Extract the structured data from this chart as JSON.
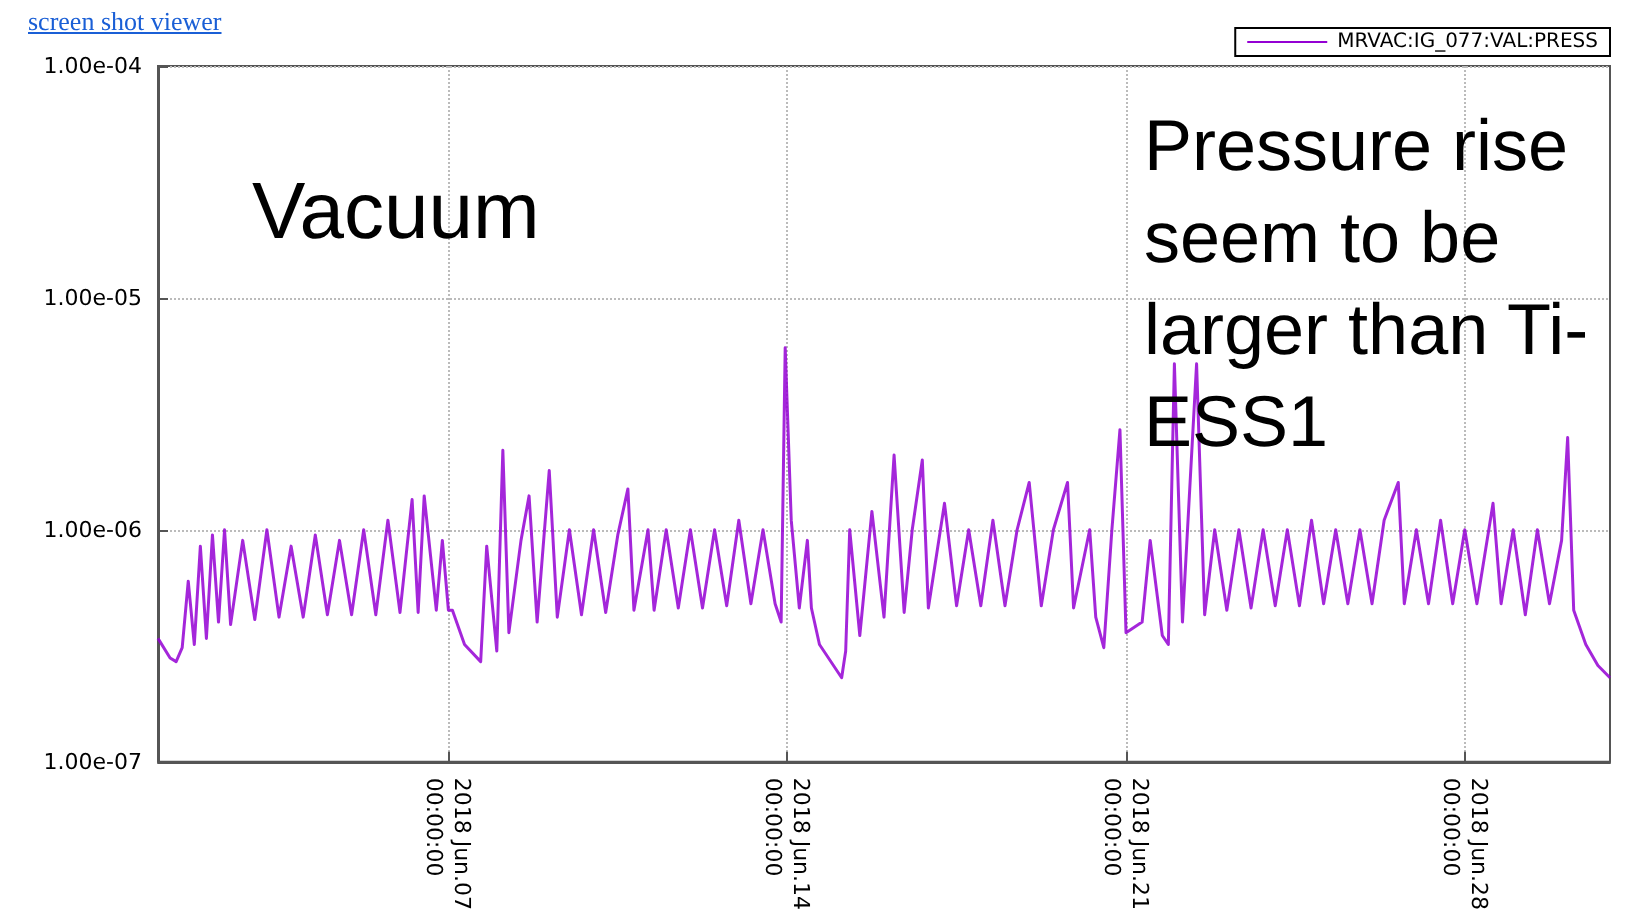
{
  "chart_data": {
    "type": "line",
    "annotations": [
      "screen shot viewer",
      "Vacuum",
      "Pressure rise seem to be larger than Ti-ESS1"
    ],
    "x": [
      "2018-06-01T00:00",
      "2018-06-01T06:00",
      "2018-06-01T09:00",
      "2018-06-01T12:00",
      "2018-06-01T15:00",
      "2018-06-01T18:00",
      "2018-06-01T21:00",
      "2018-06-02T00:00",
      "2018-06-02T03:00",
      "2018-06-02T06:00",
      "2018-06-02T09:00",
      "2018-06-02T12:00",
      "2018-06-02T18:00",
      "2018-06-03T00:00",
      "2018-06-03T06:00",
      "2018-06-03T12:00",
      "2018-06-03T18:00",
      "2018-06-04T00:00",
      "2018-06-04T06:00",
      "2018-06-04T12:00",
      "2018-06-04T18:00",
      "2018-06-05T00:00",
      "2018-06-05T06:00",
      "2018-06-05T12:00",
      "2018-06-05T18:00",
      "2018-06-06T00:00",
      "2018-06-06T06:00",
      "2018-06-06T09:00",
      "2018-06-06T12:00",
      "2018-06-06T18:00",
      "2018-06-06T21:00",
      "2018-06-07T00:00",
      "2018-06-07T02:00",
      "2018-06-07T08:00",
      "2018-06-07T16:00",
      "2018-06-07T19:00",
      "2018-06-08T00:00",
      "2018-06-08T03:00",
      "2018-06-08T06:00",
      "2018-06-08T12:00",
      "2018-06-08T16:00",
      "2018-06-08T20:00",
      "2018-06-09T02:00",
      "2018-06-09T06:00",
      "2018-06-09T12:00",
      "2018-06-09T18:00",
      "2018-06-10T00:00",
      "2018-06-10T06:00",
      "2018-06-10T12:00",
      "2018-06-10T17:00",
      "2018-06-10T20:00",
      "2018-06-11T03:00",
      "2018-06-11T06:00",
      "2018-06-11T12:00",
      "2018-06-11T18:00",
      "2018-06-12T00:00",
      "2018-06-12T06:00",
      "2018-06-12T12:00",
      "2018-06-12T18:00",
      "2018-06-13T00:00",
      "2018-06-13T06:00",
      "2018-06-13T12:00",
      "2018-06-13T18:00",
      "2018-06-13T21:00",
      "2018-06-13T23:00",
      "2018-06-14T02:00",
      "2018-06-14T06:00",
      "2018-06-14T10:00",
      "2018-06-14T12:00",
      "2018-06-14T16:00",
      "2018-06-15T03:00",
      "2018-06-15T05:00",
      "2018-06-15T07:00",
      "2018-06-15T12:00",
      "2018-06-15T18:00",
      "2018-06-16T00:00",
      "2018-06-16T05:00",
      "2018-06-16T10:00",
      "2018-06-16T14:00",
      "2018-06-16T19:00",
      "2018-06-16T22:00",
      "2018-06-17T06:00",
      "2018-06-17T12:00",
      "2018-06-17T18:00",
      "2018-06-18T00:00",
      "2018-06-18T06:00",
      "2018-06-18T12:00",
      "2018-06-18T18:00",
      "2018-06-19T00:00",
      "2018-06-19T06:00",
      "2018-06-19T12:00",
      "2018-06-19T19:00",
      "2018-06-19T22:00",
      "2018-06-20T06:00",
      "2018-06-20T09:00",
      "2018-06-20T13:00",
      "2018-06-20T17:00",
      "2018-06-20T21:00",
      "2018-06-21T00:00",
      "2018-06-21T08:00",
      "2018-06-21T12:00",
      "2018-06-21T18:00",
      "2018-06-21T21:00",
      "2018-06-22T00:00",
      "2018-06-22T04:00",
      "2018-06-22T11:00",
      "2018-06-22T15:00",
      "2018-06-22T20:00",
      "2018-06-23T02:00",
      "2018-06-23T08:00",
      "2018-06-23T14:00",
      "2018-06-23T20:00",
      "2018-06-24T02:00",
      "2018-06-24T08:00",
      "2018-06-24T14:00",
      "2018-06-24T20:00",
      "2018-06-25T02:00",
      "2018-06-25T08:00",
      "2018-06-25T14:00",
      "2018-06-25T20:00",
      "2018-06-26T02:00",
      "2018-06-26T08:00",
      "2018-06-26T15:00",
      "2018-06-26T18:00",
      "2018-06-27T00:00",
      "2018-06-27T06:00",
      "2018-06-27T12:00",
      "2018-06-27T18:00",
      "2018-06-28T00:00",
      "2018-06-28T06:00",
      "2018-06-28T14:00",
      "2018-06-28T18:00",
      "2018-06-29T00:00",
      "2018-06-29T06:00",
      "2018-06-29T12:00",
      "2018-06-29T18:00",
      "2018-06-30T00:00",
      "2018-06-30T03:00",
      "2018-06-30T06:00",
      "2018-06-30T12:00",
      "2018-06-30T18:00",
      "2018-07-01T00:00"
    ],
    "series": [
      {
        "name": "MRVAC:IG_077:VAL:PRESS",
        "color": "#9400d3",
        "values": [
          3.4e-07,
          2.8e-07,
          2.7e-07,
          3.1e-07,
          6e-07,
          3.2e-07,
          8.5e-07,
          3.4e-07,
          9.5e-07,
          4e-07,
          1e-06,
          3.9e-07,
          9e-07,
          4.1e-07,
          1e-06,
          4.2e-07,
          8.5e-07,
          4.2e-07,
          9.5e-07,
          4.3e-07,
          9e-07,
          4.3e-07,
          1e-06,
          4.3e-07,
          1.1e-06,
          4.4e-07,
          1.35e-06,
          4.4e-07,
          1.4e-06,
          4.5e-07,
          9e-07,
          4.5e-07,
          4.5e-07,
          3.2e-07,
          2.7e-07,
          8.5e-07,
          3e-07,
          2.2e-06,
          3.6e-07,
          9e-07,
          1.4e-06,
          4e-07,
          1.8e-06,
          4.2e-07,
          1e-06,
          4.3e-07,
          1e-06,
          4.4e-07,
          9.5e-07,
          1.5e-06,
          4.5e-07,
          1e-06,
          4.5e-07,
          1e-06,
          4.6e-07,
          1e-06,
          4.6e-07,
          1e-06,
          4.7e-07,
          1.1e-06,
          4.8e-07,
          1e-06,
          4.8e-07,
          4e-07,
          6.1e-06,
          1.1e-06,
          4.6e-07,
          9e-07,
          4.6e-07,
          3.2e-07,
          2.3e-07,
          3e-07,
          1e-06,
          3.5e-07,
          1.2e-06,
          4.2e-07,
          2.1e-06,
          4.4e-07,
          1e-06,
          2e-06,
          4.6e-07,
          1.3e-06,
          4.7e-07,
          1e-06,
          4.7e-07,
          1.1e-06,
          4.7e-07,
          1e-06,
          1.6e-06,
          4.7e-07,
          1e-06,
          1.6e-06,
          4.6e-07,
          1e-06,
          4.2e-07,
          3.1e-07,
          1e-06,
          2.7e-06,
          3.6e-07,
          4e-07,
          9e-07,
          3.5e-07,
          3.2e-07,
          5.2e-06,
          4e-07,
          5.2e-06,
          4.3e-07,
          1e-06,
          4.5e-07,
          1e-06,
          4.6e-07,
          1e-06,
          4.7e-07,
          1e-06,
          4.7e-07,
          1.1e-06,
          4.8e-07,
          1e-06,
          4.8e-07,
          1e-06,
          4.8e-07,
          1.1e-06,
          1.6e-06,
          4.8e-07,
          1e-06,
          4.8e-07,
          1.1e-06,
          4.8e-07,
          1e-06,
          4.8e-07,
          1.3e-06,
          4.8e-07,
          1e-06,
          4.3e-07,
          1e-06,
          4.8e-07,
          9e-07,
          2.5e-06,
          4.5e-07,
          3.2e-07,
          2.6e-07,
          2.3e-07
        ]
      }
    ],
    "xlim": [
      "2018-06-01",
      "2018-07-01"
    ],
    "xticks": [
      {
        "value": "2018-06-07",
        "label": "2018 Jun.07\n00:00:00"
      },
      {
        "value": "2018-06-14",
        "label": "2018 Jun.14\n00:00:00"
      },
      {
        "value": "2018-06-21",
        "label": "2018 Jun.21\n00:00:00"
      },
      {
        "value": "2018-06-28",
        "label": "2018 Jun.28\n00:00:00"
      }
    ],
    "ylim": [
      1e-07,
      0.0001
    ],
    "yticks": [
      {
        "value": 1e-07,
        "label": "1.00e-07"
      },
      {
        "value": 1e-06,
        "label": "1.00e-06"
      },
      {
        "value": 1e-05,
        "label": "1.00e-05"
      },
      {
        "value": 0.0001,
        "label": "1.00e-04"
      }
    ],
    "log": "y",
    "grid": true,
    "legend": "top right",
    "marker": "none",
    "line_style": "solid"
  }
}
